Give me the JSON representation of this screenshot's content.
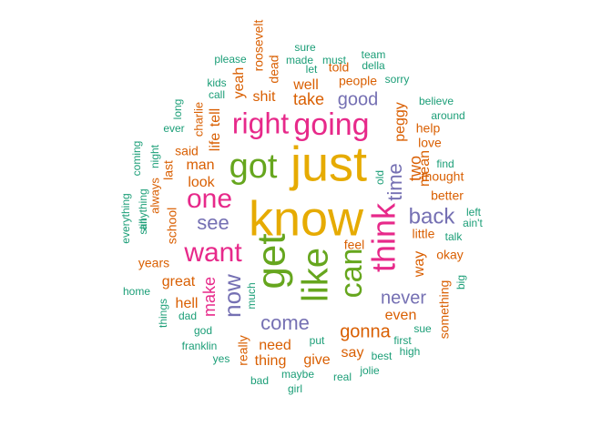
{
  "colors": {
    "teal": "#1b9e77",
    "orange": "#d95f02",
    "purple": "#7570b3",
    "magenta": "#e7298a",
    "green": "#66a61e",
    "gold": "#e6ab02"
  },
  "words": [
    {
      "text": "know",
      "color": "gold",
      "rotate": 0
    },
    {
      "text": "just",
      "color": "gold",
      "rotate": 0
    },
    {
      "text": "get",
      "color": "green",
      "rotate": -90
    },
    {
      "text": "like",
      "color": "green",
      "rotate": -90
    },
    {
      "text": "going",
      "color": "magenta",
      "rotate": 0
    },
    {
      "text": "got",
      "color": "green",
      "rotate": 0
    },
    {
      "text": "think",
      "color": "magenta",
      "rotate": -90
    },
    {
      "text": "can",
      "color": "green",
      "rotate": -90
    },
    {
      "text": "right",
      "color": "magenta",
      "rotate": 0
    },
    {
      "text": "want",
      "color": "magenta",
      "rotate": 0
    },
    {
      "text": "one",
      "color": "magenta",
      "rotate": 0
    },
    {
      "text": "now",
      "color": "purple",
      "rotate": -90
    },
    {
      "text": "back",
      "color": "purple",
      "rotate": 0
    },
    {
      "text": "come",
      "color": "purple",
      "rotate": 0
    },
    {
      "text": "never",
      "color": "purple",
      "rotate": 0
    },
    {
      "text": "see",
      "color": "purple",
      "rotate": 0
    },
    {
      "text": "good",
      "color": "purple",
      "rotate": 0
    },
    {
      "text": "gonna",
      "color": "orange",
      "rotate": 0
    },
    {
      "text": "time",
      "color": "purple",
      "rotate": -90
    },
    {
      "text": "make",
      "color": "magenta",
      "rotate": -90
    },
    {
      "text": "take",
      "color": "orange",
      "rotate": 0
    },
    {
      "text": "man",
      "color": "orange",
      "rotate": 0
    },
    {
      "text": "need",
      "color": "orange",
      "rotate": 0
    },
    {
      "text": "great",
      "color": "orange",
      "rotate": 0
    },
    {
      "text": "look",
      "color": "orange",
      "rotate": 0
    },
    {
      "text": "two",
      "color": "orange",
      "rotate": -90
    },
    {
      "text": "mean",
      "color": "orange",
      "rotate": -90
    },
    {
      "text": "peggy",
      "color": "orange",
      "rotate": -90
    },
    {
      "text": "shit",
      "color": "orange",
      "rotate": 0
    },
    {
      "text": "well",
      "color": "orange",
      "rotate": 0
    },
    {
      "text": "people",
      "color": "orange",
      "rotate": 0
    },
    {
      "text": "little",
      "color": "orange",
      "rotate": 0
    },
    {
      "text": "even",
      "color": "orange",
      "rotate": 0
    },
    {
      "text": "way",
      "color": "orange",
      "rotate": -90
    },
    {
      "text": "thing",
      "color": "orange",
      "rotate": 0
    },
    {
      "text": "give",
      "color": "orange",
      "rotate": 0
    },
    {
      "text": "say",
      "color": "orange",
      "rotate": 0
    },
    {
      "text": "hell",
      "color": "orange",
      "rotate": 0
    },
    {
      "text": "said",
      "color": "orange",
      "rotate": 0
    },
    {
      "text": "school",
      "color": "orange",
      "rotate": -90
    },
    {
      "text": "love",
      "color": "orange",
      "rotate": 0
    },
    {
      "text": "help",
      "color": "orange",
      "rotate": 0
    },
    {
      "text": "yeah",
      "color": "orange",
      "rotate": -90
    },
    {
      "text": "tell",
      "color": "orange",
      "rotate": -90
    },
    {
      "text": "life",
      "color": "orange",
      "rotate": -90
    },
    {
      "text": "really",
      "color": "orange",
      "rotate": -90
    },
    {
      "text": "okay",
      "color": "orange",
      "rotate": 0
    },
    {
      "text": "something",
      "color": "orange",
      "rotate": -90
    },
    {
      "text": "better",
      "color": "orange",
      "rotate": 0
    },
    {
      "text": "thought",
      "color": "orange",
      "rotate": 0
    },
    {
      "text": "roosevelt",
      "color": "orange",
      "rotate": -90
    },
    {
      "text": "dead",
      "color": "orange",
      "rotate": -90
    },
    {
      "text": "told",
      "color": "orange",
      "rotate": 0
    },
    {
      "text": "feel",
      "color": "orange",
      "rotate": 0
    },
    {
      "text": "years",
      "color": "orange",
      "rotate": 0
    },
    {
      "text": "last",
      "color": "orange",
      "rotate": -90
    },
    {
      "text": "charlie",
      "color": "orange",
      "rotate": -90
    },
    {
      "text": "always",
      "color": "orange",
      "rotate": -90
    },
    {
      "text": "old",
      "color": "teal",
      "rotate": -90
    },
    {
      "text": "find",
      "color": "teal",
      "rotate": 0
    },
    {
      "text": "left",
      "color": "teal",
      "rotate": 0
    },
    {
      "text": "ain't",
      "color": "teal",
      "rotate": 0
    },
    {
      "text": "talk",
      "color": "teal",
      "rotate": 0
    },
    {
      "text": "big",
      "color": "teal",
      "rotate": -90
    },
    {
      "text": "sue",
      "color": "teal",
      "rotate": 0
    },
    {
      "text": "high",
      "color": "teal",
      "rotate": 0
    },
    {
      "text": "first",
      "color": "teal",
      "rotate": 0
    },
    {
      "text": "best",
      "color": "teal",
      "rotate": 0
    },
    {
      "text": "jolie",
      "color": "teal",
      "rotate": 0
    },
    {
      "text": "real",
      "color": "teal",
      "rotate": 0
    },
    {
      "text": "maybe",
      "color": "teal",
      "rotate": 0
    },
    {
      "text": "girl",
      "color": "teal",
      "rotate": 0
    },
    {
      "text": "bad",
      "color": "teal",
      "rotate": 0
    },
    {
      "text": "put",
      "color": "teal",
      "rotate": 0
    },
    {
      "text": "yes",
      "color": "teal",
      "rotate": 0
    },
    {
      "text": "franklin",
      "color": "teal",
      "rotate": 0
    },
    {
      "text": "god",
      "color": "teal",
      "rotate": 0
    },
    {
      "text": "dad",
      "color": "teal",
      "rotate": 0
    },
    {
      "text": "things",
      "color": "teal",
      "rotate": -90
    },
    {
      "text": "much",
      "color": "teal",
      "rotate": -90
    },
    {
      "text": "home",
      "color": "teal",
      "rotate": 0
    },
    {
      "text": "still",
      "color": "teal",
      "rotate": -90
    },
    {
      "text": "anything",
      "color": "teal",
      "rotate": -90
    },
    {
      "text": "everything",
      "color": "teal",
      "rotate": -90
    },
    {
      "text": "coming",
      "color": "teal",
      "rotate": -90
    },
    {
      "text": "night",
      "color": "teal",
      "rotate": -90
    },
    {
      "text": "ever",
      "color": "teal",
      "rotate": 0
    },
    {
      "text": "long",
      "color": "teal",
      "rotate": -90
    },
    {
      "text": "call",
      "color": "teal",
      "rotate": 0
    },
    {
      "text": "kids",
      "color": "teal",
      "rotate": 0
    },
    {
      "text": "please",
      "color": "teal",
      "rotate": 0
    },
    {
      "text": "sure",
      "color": "teal",
      "rotate": 0
    },
    {
      "text": "made",
      "color": "teal",
      "rotate": 0
    },
    {
      "text": "must",
      "color": "teal",
      "rotate": 0
    },
    {
      "text": "let",
      "color": "teal",
      "rotate": 0
    },
    {
      "text": "team",
      "color": "teal",
      "rotate": 0
    },
    {
      "text": "della",
      "color": "teal",
      "rotate": 0
    },
    {
      "text": "sorry",
      "color": "teal",
      "rotate": 0
    },
    {
      "text": "believe",
      "color": "teal",
      "rotate": 0
    },
    {
      "text": "around",
      "color": "teal",
      "rotate": 0
    }
  ]
}
